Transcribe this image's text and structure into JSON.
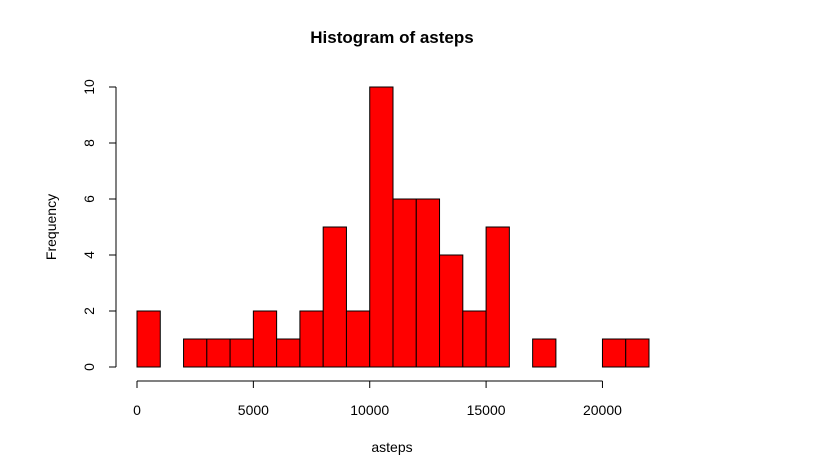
{
  "chart_data": {
    "type": "bar",
    "title": "Histogram of asteps",
    "xlabel": "asteps",
    "ylabel": "Frequency",
    "bar_color": "#ff0000",
    "border_color": "#000000",
    "bin_width": 1000,
    "bin_starts": [
      0,
      1000,
      2000,
      3000,
      4000,
      5000,
      6000,
      7000,
      8000,
      9000,
      10000,
      11000,
      12000,
      13000,
      14000,
      15000,
      16000,
      17000,
      18000,
      19000,
      20000,
      21000
    ],
    "values": [
      2,
      0,
      1,
      1,
      1,
      2,
      1,
      2,
      5,
      2,
      10,
      6,
      6,
      4,
      2,
      5,
      0,
      1,
      0,
      0,
      1,
      1
    ],
    "xlim": [
      0,
      22000
    ],
    "ylim": [
      0,
      10
    ],
    "x_ticks": [
      0,
      5000,
      10000,
      15000,
      20000
    ],
    "x_tick_labels": [
      "0",
      "5000",
      "10000",
      "15000",
      "20000"
    ],
    "y_ticks": [
      0,
      2,
      4,
      6,
      8,
      10
    ],
    "y_tick_labels": [
      "0",
      "2",
      "4",
      "6",
      "8",
      "10"
    ],
    "grid": false,
    "legend": "none"
  }
}
